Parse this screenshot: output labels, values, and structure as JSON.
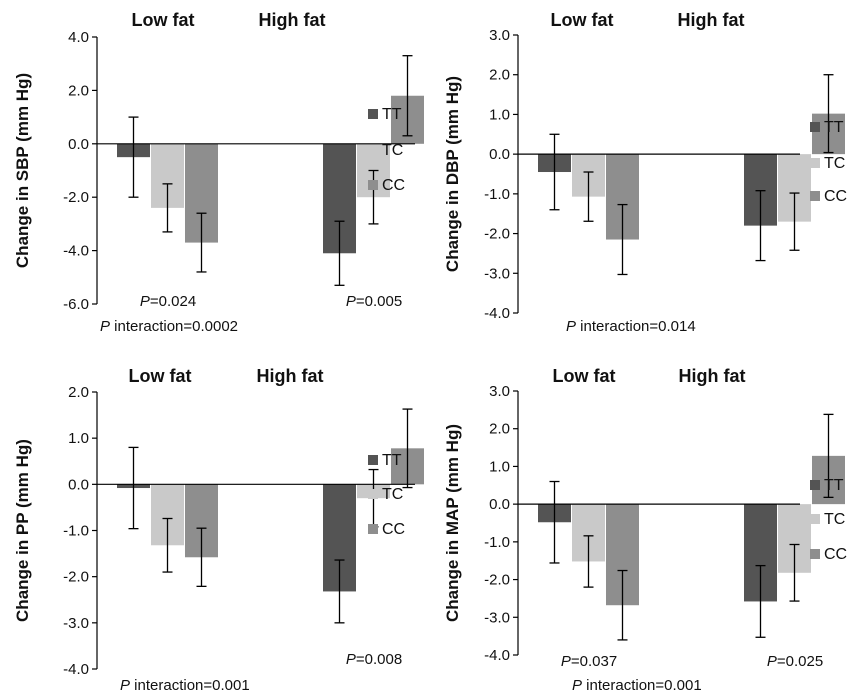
{
  "colors": {
    "TT": "#545454",
    "TC": "#c9c9c9",
    "CC": "#8e8e8e",
    "axis": "#000000"
  },
  "chart_data": [
    {
      "type": "bar",
      "groups": [
        "Low fat",
        "High fat"
      ],
      "ylabel": "Change in SBP (mm Hg)",
      "ylim": [
        -6.0,
        4.0
      ],
      "yticks": [
        4.0,
        2.0,
        0.0,
        -2.0,
        -4.0,
        -6.0
      ],
      "series": [
        {
          "name": "TT",
          "values": [
            -0.5,
            -4.1
          ],
          "errors": [
            1.5,
            1.2
          ]
        },
        {
          "name": "TC",
          "values": [
            -2.4,
            -2.0
          ],
          "errors": [
            0.9,
            1.0
          ]
        },
        {
          "name": "CC",
          "values": [
            -3.7,
            1.8
          ],
          "errors": [
            1.1,
            1.5
          ]
        }
      ],
      "p_values": [
        {
          "prefix": "P",
          "text": "=0.024",
          "group": 0
        },
        {
          "prefix": "P",
          "text": "=0.005",
          "group": 1
        }
      ],
      "interaction": {
        "prefix": "P",
        "text": " interaction=0.0002"
      }
    },
    {
      "type": "bar",
      "groups": [
        "Low fat",
        "High fat"
      ],
      "ylabel": "Change in DBP (mm Hg)",
      "ylim": [
        -4.0,
        3.0
      ],
      "yticks": [
        3.0,
        2.0,
        1.0,
        0.0,
        -1.0,
        -2.0,
        -3.0,
        -4.0
      ],
      "series": [
        {
          "name": "TT",
          "values": [
            -0.45,
            -1.8
          ],
          "errors": [
            0.95,
            0.88
          ]
        },
        {
          "name": "TC",
          "values": [
            -1.07,
            -1.7
          ],
          "errors": [
            0.62,
            0.72
          ]
        },
        {
          "name": "CC",
          "values": [
            -2.15,
            1.02
          ],
          "errors": [
            0.88,
            0.98
          ]
        }
      ],
      "p_values": [],
      "interaction": {
        "prefix": "P",
        "text": " interaction=0.014"
      }
    },
    {
      "type": "bar",
      "groups": [
        "Low fat",
        "High fat"
      ],
      "ylabel": "Change in PP (mm Hg)",
      "ylim": [
        -4.0,
        2.0
      ],
      "yticks": [
        2.0,
        1.0,
        0.0,
        -1.0,
        -2.0,
        -3.0,
        -4.0
      ],
      "series": [
        {
          "name": "TT",
          "values": [
            -0.08,
            -2.32
          ],
          "errors": [
            0.88,
            0.68
          ]
        },
        {
          "name": "TC",
          "values": [
            -1.32,
            -0.3
          ],
          "errors": [
            0.58,
            0.62
          ]
        },
        {
          "name": "CC",
          "values": [
            -1.58,
            0.78
          ],
          "errors": [
            0.63,
            0.85
          ]
        }
      ],
      "p_values": [
        {
          "prefix": "P",
          "text": "=0.008",
          "group": 1
        }
      ],
      "interaction": {
        "prefix": "P",
        "text": " interaction=0.001"
      }
    },
    {
      "type": "bar",
      "groups": [
        "Low fat",
        "High fat"
      ],
      "ylabel": "Change in MAP (mm Hg)",
      "ylim": [
        -4.0,
        3.0
      ],
      "yticks": [
        3.0,
        2.0,
        1.0,
        0.0,
        -1.0,
        -2.0,
        -3.0,
        -4.0
      ],
      "series": [
        {
          "name": "TT",
          "values": [
            -0.48,
            -2.58
          ],
          "errors": [
            1.08,
            0.95
          ]
        },
        {
          "name": "TC",
          "values": [
            -1.52,
            -1.82
          ],
          "errors": [
            0.68,
            0.75
          ]
        },
        {
          "name": "CC",
          "values": [
            -2.68,
            1.28
          ],
          "errors": [
            0.92,
            1.1
          ]
        }
      ],
      "p_values": [
        {
          "prefix": "P",
          "text": "=0.037",
          "group": 0
        },
        {
          "prefix": "P",
          "text": "=0.025",
          "group": 1
        }
      ],
      "interaction": {
        "prefix": "P",
        "text": " interaction=0.001"
      }
    }
  ]
}
